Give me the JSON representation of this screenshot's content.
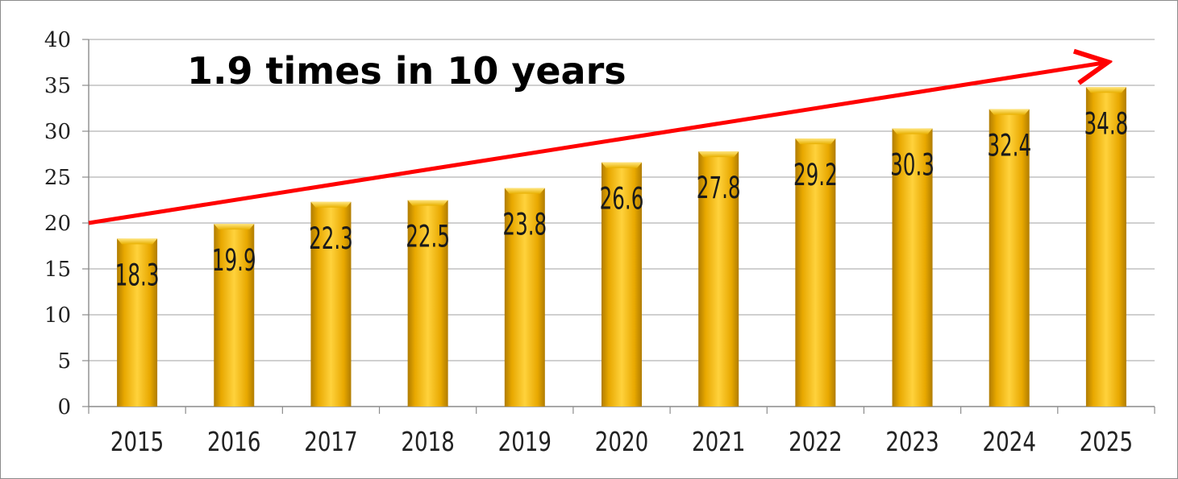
{
  "chart_data": {
    "type": "bar",
    "categories": [
      "2015",
      "2016",
      "2017",
      "2018",
      "2019",
      "2020",
      "2021",
      "2022",
      "2023",
      "2024",
      "2025"
    ],
    "values": [
      18.3,
      19.9,
      22.3,
      22.5,
      23.8,
      26.6,
      27.8,
      29.2,
      30.3,
      32.4,
      34.8
    ],
    "data_labels": [
      "18.3",
      "19.9",
      "22.3",
      "22.5",
      "23.8",
      "26.6",
      "27.8",
      "29.2",
      "30.3",
      "32.4",
      "34.8"
    ],
    "yticks": [
      "0",
      "5",
      "10",
      "15",
      "20",
      "25",
      "30",
      "35",
      "40"
    ],
    "ylim": [
      0,
      40
    ],
    "grid": true,
    "legend": "none",
    "annotation": "1.9 times in 10 years",
    "bar_color": "#FFC000",
    "trend_arrow_color": "#FF0000",
    "trend_arrow": {
      "from_y": 20,
      "to_y": 37.5
    }
  }
}
